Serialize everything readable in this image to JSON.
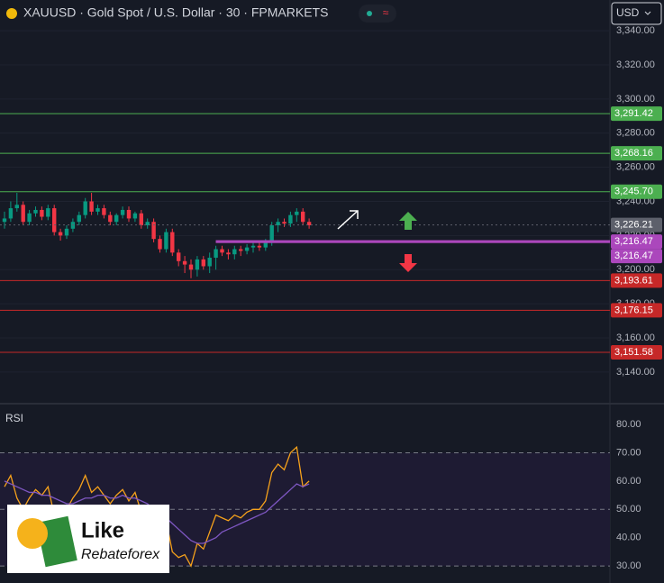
{
  "header": {
    "symbol": "XAUUSD · Gold Spot / U.S. Dollar · 30 · FPMARKETS",
    "currency": "USD"
  },
  "logo": {
    "line1": "Like",
    "line2": "Rebateforex"
  },
  "chart_data": [
    {
      "type": "candlestick",
      "up_color": "#089981",
      "down_color": "#f23645",
      "open": [
        3228,
        3230,
        3236,
        3238,
        3228,
        3233,
        3235,
        3231,
        3236,
        3222,
        3220,
        3224,
        3228,
        3232,
        3240,
        3234,
        3236,
        3232,
        3228,
        3232,
        3235,
        3230,
        3233,
        3226,
        3228,
        3218,
        3212,
        3222,
        3210,
        3205,
        3203,
        3200,
        3206,
        3202,
        3207,
        3212,
        3210,
        3209,
        3212,
        3211,
        3213,
        3214,
        3213,
        3216,
        3226,
        3228,
        3227,
        3232,
        3234,
        3228
      ],
      "high": [
        3234,
        3240,
        3245,
        3240,
        3235,
        3237,
        3237,
        3238,
        3238,
        3224,
        3226,
        3230,
        3234,
        3242,
        3245,
        3238,
        3238,
        3234,
        3233,
        3237,
        3237,
        3234,
        3235,
        3230,
        3230,
        3220,
        3224,
        3224,
        3212,
        3208,
        3206,
        3208,
        3208,
        3210,
        3214,
        3214,
        3212,
        3214,
        3214,
        3215,
        3216,
        3216,
        3218,
        3228,
        3230,
        3230,
        3234,
        3236,
        3236,
        3230
      ],
      "low": [
        3224,
        3228,
        3234,
        3226,
        3226,
        3231,
        3229,
        3229,
        3220,
        3217,
        3218,
        3222,
        3226,
        3230,
        3232,
        3232,
        3230,
        3226,
        3226,
        3230,
        3228,
        3228,
        3224,
        3224,
        3216,
        3210,
        3210,
        3208,
        3202,
        3198,
        3195,
        3196,
        3200,
        3198,
        3200,
        3208,
        3206,
        3206,
        3208,
        3209,
        3210,
        3211,
        3211,
        3214,
        3222,
        3225,
        3225,
        3228,
        3226,
        3224
      ],
      "close": [
        3230,
        3236,
        3238,
        3228,
        3233,
        3235,
        3231,
        3236,
        3222,
        3220,
        3224,
        3228,
        3232,
        3240,
        3234,
        3236,
        3232,
        3228,
        3232,
        3235,
        3230,
        3233,
        3226,
        3228,
        3218,
        3212,
        3222,
        3210,
        3205,
        3203,
        3200,
        3206,
        3202,
        3207,
        3212,
        3210,
        3209,
        3212,
        3211,
        3213,
        3214,
        3213,
        3216,
        3226,
        3228,
        3227,
        3232,
        3234,
        3228,
        3226
      ],
      "ylim": [
        3122,
        3358
      ],
      "yticks": [
        {
          "value": 3140,
          "label": "3,140.00"
        },
        {
          "value": 3160,
          "label": "3,160.00"
        },
        {
          "value": 3180,
          "label": "3,180.00"
        },
        {
          "value": 3200,
          "label": "3,200.00"
        },
        {
          "value": 3220,
          "label": "3,220.00"
        },
        {
          "value": 3240,
          "label": "3,240.00"
        },
        {
          "value": 3260,
          "label": "3,260.00"
        },
        {
          "value": 3280,
          "label": "3,280.00"
        },
        {
          "value": 3300,
          "label": "3,300.00"
        },
        {
          "value": 3320,
          "label": "3,320.00"
        },
        {
          "value": 3340,
          "label": "3,340.00"
        }
      ],
      "levels": [
        {
          "value": 3291.42,
          "label": "3,291.42",
          "color": "#4caf50",
          "style": "solid"
        },
        {
          "value": 3268.16,
          "label": "3,268.16",
          "color": "#4caf50",
          "style": "solid"
        },
        {
          "value": 3245.7,
          "label": "3,245.70",
          "color": "#4caf50",
          "style": "solid"
        },
        {
          "value": 3226.21,
          "label": "3,226.21",
          "color": "#5d606b",
          "style": "dotted"
        },
        {
          "value": 3216.47,
          "label": "3,216.47",
          "color": "#ab47bc",
          "style": "thick"
        },
        {
          "value": 3216.47,
          "label": "3,216.47",
          "color": "#ab47bc",
          "style": "thick"
        },
        {
          "value": 3193.61,
          "label": "3,193.61",
          "color": "#c62828",
          "style": "solid"
        },
        {
          "value": 3176.15,
          "label": "3,176.15",
          "color": "#c62828",
          "style": "solid"
        },
        {
          "value": 3151.58,
          "label": "3,151.58",
          "color": "#c62828",
          "style": "solid"
        }
      ]
    },
    {
      "type": "line",
      "title": "RSI",
      "series": [
        {
          "color": "#f7a21b",
          "values": [
            58,
            62,
            54,
            50,
            54,
            57,
            55,
            58,
            48,
            46,
            50,
            54,
            57,
            62,
            56,
            58,
            55,
            52,
            55,
            57,
            53,
            56,
            49,
            51,
            42,
            37,
            46,
            35,
            33,
            34,
            30,
            38,
            36,
            42,
            48,
            47,
            46,
            48,
            47,
            49,
            50,
            50,
            53,
            63,
            66,
            64,
            70,
            72,
            58,
            60
          ]
        },
        {
          "color": "#7e57c2",
          "values": [
            60,
            59,
            58,
            57,
            56,
            56,
            55,
            55,
            54,
            53,
            52,
            52,
            53,
            54,
            54,
            55,
            55,
            54,
            54,
            55,
            54,
            54,
            53,
            52,
            50,
            48,
            47,
            45,
            43,
            41,
            39,
            38,
            38,
            39,
            40,
            42,
            43,
            44,
            45,
            46,
            47,
            48,
            49,
            51,
            53,
            55,
            57,
            59,
            58,
            59
          ]
        }
      ],
      "band": [
        30,
        70
      ],
      "band_color": "#1e1b33",
      "ylim": [
        24,
        86.7
      ],
      "yticks": [
        {
          "value": 30,
          "label": "30.00"
        },
        {
          "value": 40,
          "label": "40.00"
        },
        {
          "value": 50,
          "label": "50.00"
        },
        {
          "value": 60,
          "label": "60.00"
        },
        {
          "value": 70,
          "label": "70.00"
        },
        {
          "value": 80,
          "label": "80.00"
        }
      ],
      "dashed": [
        30,
        50,
        70
      ]
    }
  ]
}
